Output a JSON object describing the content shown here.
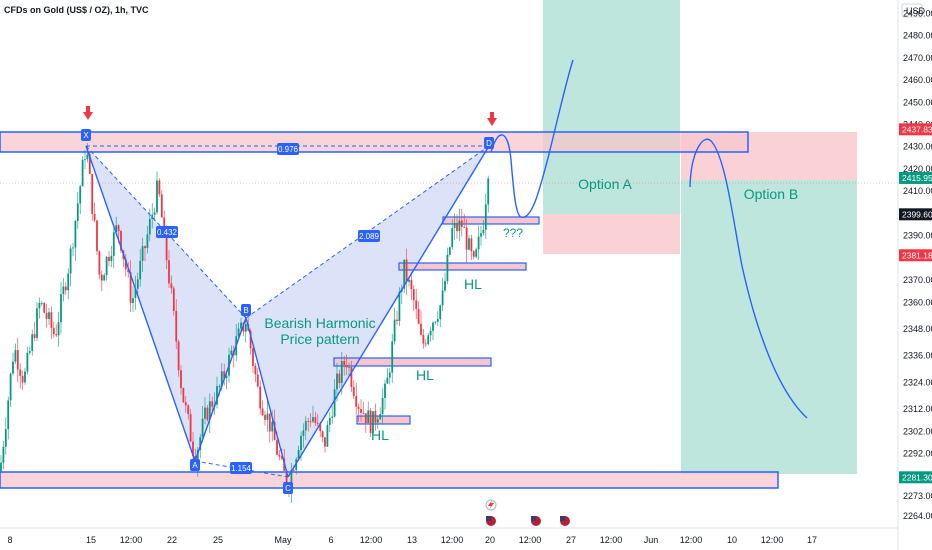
{
  "header": {
    "title": "CFDs on Gold (US$ / OZ), 1h, TVC",
    "currency": "USD"
  },
  "colors": {
    "up": "#089981",
    "down": "#f23645",
    "pattern_line": "#2962ff",
    "pattern_fill": "#d6def8",
    "zone_fill": "#f7c6cc",
    "target_fill": "#bfe6dc",
    "stop_fill": "#fad1d4",
    "annotation_green": "#089981",
    "axis_text": "#131722"
  },
  "chart_data": {
    "type": "candlestick",
    "title": "CFDs on Gold (US$ / OZ), 1h, TVC",
    "ylabel": "USD",
    "ylim": [
      2258.5,
      2496
    ],
    "y_ticks": [
      2264.0,
      2273.0,
      2281.3,
      2292.0,
      2302.0,
      2312.0,
      2324.0,
      2336.0,
      2348.0,
      2360.0,
      2370.0,
      2381.18,
      2390.0,
      2399.6,
      2410.0,
      2415.95,
      2420.0,
      2430.0,
      2437.83,
      2440.0,
      2450.0,
      2460.0,
      2470.0,
      2480.0,
      2490.0
    ],
    "x_ticks": [
      "8",
      "15",
      "12:00",
      "22",
      "25",
      "May",
      "6",
      "12:00",
      "13",
      "12:00",
      "20",
      "12:00",
      "27",
      "12:00",
      "Jun",
      "12:00",
      "10",
      "12:00",
      "17"
    ],
    "price_tags": [
      {
        "label": "2437.83",
        "value": 2437.83,
        "color": "#f23645"
      },
      {
        "label": "2415.95",
        "value": 2415.95,
        "color": "#089981"
      },
      {
        "label": "2399.60",
        "value": 2399.6,
        "color": "#131722"
      },
      {
        "label": "2381.18",
        "value": 2381.18,
        "color": "#f23645"
      },
      {
        "label": "2281.30",
        "value": 2281.3,
        "color": "#089981"
      }
    ],
    "harmonic_points": [
      {
        "label": "X",
        "price": 2431.5
      },
      {
        "label": "A",
        "price": 2286.0
      },
      {
        "label": "B",
        "price": 2352.0
      },
      {
        "label": "C",
        "price": 2277.5
      },
      {
        "label": "D",
        "price": 2431.5
      }
    ],
    "ratios": [
      "0.976",
      "0.432",
      "1.154",
      "2.089"
    ],
    "annotations": [
      "Bearish Harmonic",
      "Price pattern",
      "HL",
      "HL",
      "HL",
      "???",
      "Option A",
      "Option B"
    ]
  }
}
